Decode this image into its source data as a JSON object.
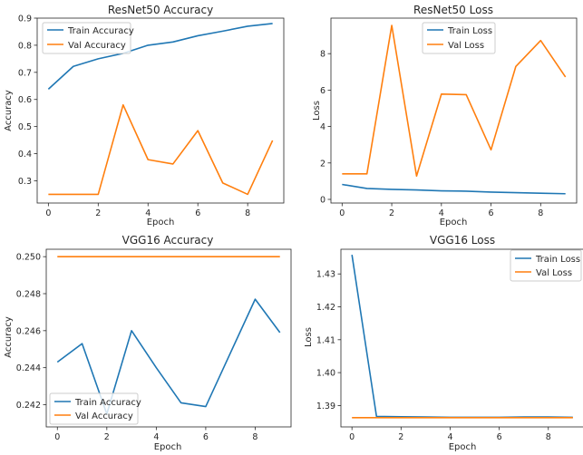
{
  "colors": {
    "train": "#1f77b4",
    "val": "#ff7f0e",
    "axis": "#262626",
    "background": "#ffffff"
  },
  "chart_data": [
    {
      "type": "line",
      "title": "ResNet50 Accuracy",
      "xlabel": "Epoch",
      "ylabel": "Accuracy",
      "x": [
        0,
        1,
        2,
        3,
        4,
        5,
        6,
        7,
        8,
        9
      ],
      "xticks": [
        "0",
        "2",
        "4",
        "6",
        "8"
      ],
      "xtick_values": [
        0,
        2,
        4,
        6,
        8
      ],
      "xlim": [
        -0.45,
        9.45
      ],
      "yticks": [
        "0.3",
        "0.4",
        "0.5",
        "0.6",
        "0.7",
        "0.8",
        "0.9"
      ],
      "ytick_values": [
        0.3,
        0.4,
        0.5,
        0.6,
        0.7,
        0.8,
        0.9
      ],
      "ylim": [
        0.218,
        0.9
      ],
      "legend_position": "top-left",
      "grid": false,
      "series": [
        {
          "name": "Train Accuracy",
          "color": "#1f77b4",
          "values": [
            0.638,
            0.722,
            0.75,
            0.77,
            0.8,
            0.812,
            0.835,
            0.852,
            0.87,
            0.88
          ]
        },
        {
          "name": "Val Accuracy",
          "color": "#ff7f0e",
          "values": [
            0.25,
            0.25,
            0.25,
            0.58,
            0.378,
            0.362,
            0.485,
            0.292,
            0.25,
            0.449
          ]
        }
      ]
    },
    {
      "type": "line",
      "title": "ResNet50 Loss",
      "xlabel": "Epoch",
      "ylabel": "Loss",
      "x": [
        0,
        1,
        2,
        3,
        4,
        5,
        6,
        7,
        8,
        9
      ],
      "xticks": [
        "0",
        "2",
        "4",
        "6",
        "8"
      ],
      "xtick_values": [
        0,
        2,
        4,
        6,
        8
      ],
      "xlim": [
        -0.45,
        9.45
      ],
      "yticks": [
        "0",
        "2",
        "4",
        "6",
        "8"
      ],
      "ytick_values": [
        0,
        2,
        4,
        6,
        8
      ],
      "ylim": [
        -0.2,
        9.95
      ],
      "legend_position": "top-center",
      "grid": false,
      "series": [
        {
          "name": "Train Loss",
          "color": "#1f77b4",
          "values": [
            0.82,
            0.6,
            0.55,
            0.52,
            0.47,
            0.45,
            0.4,
            0.37,
            0.34,
            0.31
          ]
        },
        {
          "name": "Val Loss",
          "color": "#ff7f0e",
          "values": [
            1.4,
            1.4,
            9.55,
            1.28,
            5.78,
            5.75,
            2.72,
            7.3,
            8.72,
            6.72
          ]
        }
      ]
    },
    {
      "type": "line",
      "title": "VGG16 Accuracy",
      "xlabel": "Epoch",
      "ylabel": "Accuracy",
      "x": [
        0,
        1,
        2,
        3,
        4,
        5,
        6,
        7,
        8,
        9
      ],
      "xticks": [
        "0",
        "2",
        "4",
        "6",
        "8"
      ],
      "xtick_values": [
        0,
        2,
        4,
        6,
        8
      ],
      "xlim": [
        -0.45,
        9.45
      ],
      "yticks": [
        "0.242",
        "0.244",
        "0.246",
        "0.248",
        "0.250"
      ],
      "ytick_values": [
        0.242,
        0.244,
        0.246,
        0.248,
        0.25
      ],
      "ylim": [
        0.2408,
        0.2504
      ],
      "legend_position": "bottom-left",
      "grid": false,
      "series": [
        {
          "name": "Train Accuracy",
          "color": "#1f77b4",
          "values": [
            0.2443,
            0.2453,
            0.2415,
            0.246,
            0.244,
            0.2421,
            0.2419,
            0.2448,
            0.2477,
            0.2459
          ]
        },
        {
          "name": "Val Accuracy",
          "color": "#ff7f0e",
          "values": [
            0.25,
            0.25,
            0.25,
            0.25,
            0.25,
            0.25,
            0.25,
            0.25,
            0.25,
            0.25
          ]
        }
      ]
    },
    {
      "type": "line",
      "title": "VGG16 Loss",
      "xlabel": "Epoch",
      "ylabel": "Loss",
      "x": [
        0,
        1,
        2,
        3,
        4,
        5,
        6,
        7,
        8,
        9
      ],
      "xticks": [
        "0",
        "2",
        "4",
        "6",
        "8"
      ],
      "xtick_values": [
        0,
        2,
        4,
        6,
        8
      ],
      "xlim": [
        -0.45,
        9.45
      ],
      "yticks": [
        "1.39",
        "1.40",
        "1.41",
        "1.42",
        "1.43"
      ],
      "ytick_values": [
        1.39,
        1.4,
        1.41,
        1.42,
        1.43
      ],
      "ylim": [
        1.3835,
        1.4375
      ],
      "legend_position": "top-right",
      "grid": false,
      "series": [
        {
          "name": "Train Loss",
          "color": "#1f77b4",
          "values": [
            1.4358,
            1.3867,
            1.3866,
            1.3865,
            1.3864,
            1.3864,
            1.3864,
            1.3865,
            1.3865,
            1.3864
          ]
        },
        {
          "name": "Val Loss",
          "color": "#ff7f0e",
          "values": [
            1.3863,
            1.3863,
            1.3863,
            1.3863,
            1.3863,
            1.3863,
            1.3863,
            1.3863,
            1.3863,
            1.3863
          ]
        }
      ]
    }
  ]
}
